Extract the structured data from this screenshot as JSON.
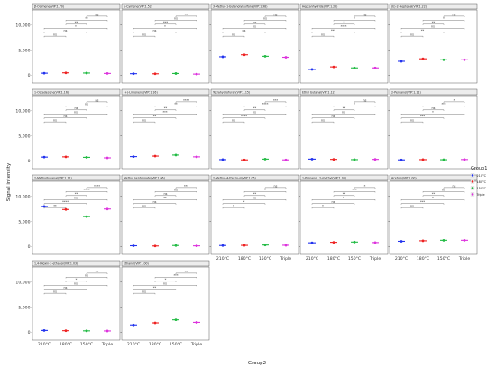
{
  "chart_data": {
    "type": "scatter",
    "facet_columns": 5,
    "xlabel": "Group2",
    "ylabel": "Signal intensity",
    "categories": [
      "210°C",
      "180°C",
      "150°C",
      "Triple"
    ],
    "ylim": [
      -1500,
      13000
    ],
    "yticks": [
      0,
      5000,
      10000
    ],
    "ytick_labels": [
      "0",
      "5,000",
      "10,000"
    ],
    "legend": {
      "title": "Group1",
      "placement": "right",
      "entries": [
        {
          "label": "210°C",
          "color": "#2233ee"
        },
        {
          "label": "180°C",
          "color": "#ee2222"
        },
        {
          "label": "150°C",
          "color": "#22bb44"
        },
        {
          "label": "Triple",
          "color": "#dd33dd"
        }
      ]
    },
    "sig_levels": [
      "ns",
      "*",
      "**",
      "***",
      "****"
    ],
    "panels": [
      {
        "title": "β-Ocimene(VIP:1.70)",
        "values": [
          450,
          520,
          480,
          400
        ],
        "sig": [
          "ns",
          "ns",
          "*",
          "**",
          "**",
          "ns"
        ]
      },
      {
        "title": "p-Cymene(VIP:1.52)",
        "values": [
          350,
          330,
          390,
          270
        ],
        "sig": [
          "ns",
          "ns",
          "*",
          "***",
          "ns",
          "**"
        ]
      },
      {
        "title": "3-Methyl-1-butanolylsulfone(VIP:1.38)",
        "values": [
          3700,
          4100,
          3800,
          3600
        ],
        "sig": [
          "ns",
          "ns",
          "ns",
          "ns",
          "ns",
          "ns"
        ]
      },
      {
        "title": "Heptanhydride(VIP:1.25)",
        "values": [
          1200,
          1700,
          1500,
          1500
        ],
        "sig": [
          "ns",
          "***",
          "****",
          "*",
          "*",
          "ns"
        ]
      },
      {
        "title": "(E)-2-Heptenal(VIP:1.22)",
        "values": [
          2800,
          3300,
          3100,
          3100
        ],
        "sig": [
          "ns",
          "**",
          "ns",
          "**",
          "*",
          "ns"
        ]
      },
      {
        "title": "1-Octadecene(VIP:1.16)",
        "values": [
          800,
          850,
          750,
          650
        ],
        "sig": [
          "ns",
          "ns",
          "ns",
          "ns",
          "ns",
          "ns"
        ]
      },
      {
        "title": "(+)-Limonene(VIP:1.16)",
        "values": [
          900,
          1000,
          1200,
          850
        ],
        "sig": [
          "ns",
          "**",
          "***",
          "**",
          "**",
          "****"
        ]
      },
      {
        "title": "Tetrahydrofuran(VIP:1.15)",
        "values": [
          300,
          250,
          400,
          250
        ],
        "sig": [
          "ns",
          "****",
          "ns",
          "**",
          "****",
          "***"
        ]
      },
      {
        "title": "Ethyl butanal(VIP:1.12)",
        "values": [
          400,
          350,
          300,
          350
        ],
        "sig": [
          "ns",
          "ns",
          "ns",
          "**",
          "*",
          "ns"
        ]
      },
      {
        "title": "2-Pentanol(VIP:1.11)",
        "values": [
          250,
          300,
          280,
          320
        ],
        "sig": [
          "ns",
          "***",
          "*",
          "ns",
          "***",
          "*"
        ]
      },
      {
        "title": "2-Methylbutanal(VIP:1.11)",
        "values": [
          8000,
          7400,
          6000,
          7500
        ],
        "sig": [
          "**",
          "****",
          "ns",
          "**",
          "****",
          "****"
        ]
      },
      {
        "title": "Methyl pentanoate(VIP:1.06)",
        "values": [
          200,
          150,
          250,
          180
        ],
        "sig": [
          "ns",
          "ns",
          "**",
          "ns",
          "ns",
          "***"
        ]
      },
      {
        "title": "2-Methyl-4-thiazo-ol(VIP:1.05)",
        "values": [
          250,
          280,
          350,
          300
        ],
        "sig": [
          "*",
          "*",
          "ns",
          "**",
          "*",
          "ns"
        ]
      },
      {
        "title": "1-Propanol, 2-methyl(VIP:1.03)",
        "values": [
          800,
          900,
          950,
          850
        ],
        "sig": [
          "*",
          "ns",
          "*",
          "**",
          "***",
          "*"
        ]
      },
      {
        "title": "Acetoin(VIP:1.00)",
        "values": [
          1100,
          1200,
          1300,
          1300
        ],
        "sig": [
          "ns",
          "***",
          "*",
          "**",
          "ns",
          "ns"
        ]
      },
      {
        "title": "1,4-Dioxin-2-ethanol(VIP:1.03)",
        "values": [
          400,
          350,
          320,
          300
        ],
        "sig": [
          "ns",
          "ns",
          "ns",
          "*",
          "ns",
          "**"
        ]
      },
      {
        "title": "Ethanol(VIP:1.00)",
        "values": [
          1500,
          1900,
          2500,
          2000
        ],
        "sig": [
          "ns",
          "**",
          "ns",
          "*",
          "***",
          "**"
        ]
      }
    ]
  }
}
